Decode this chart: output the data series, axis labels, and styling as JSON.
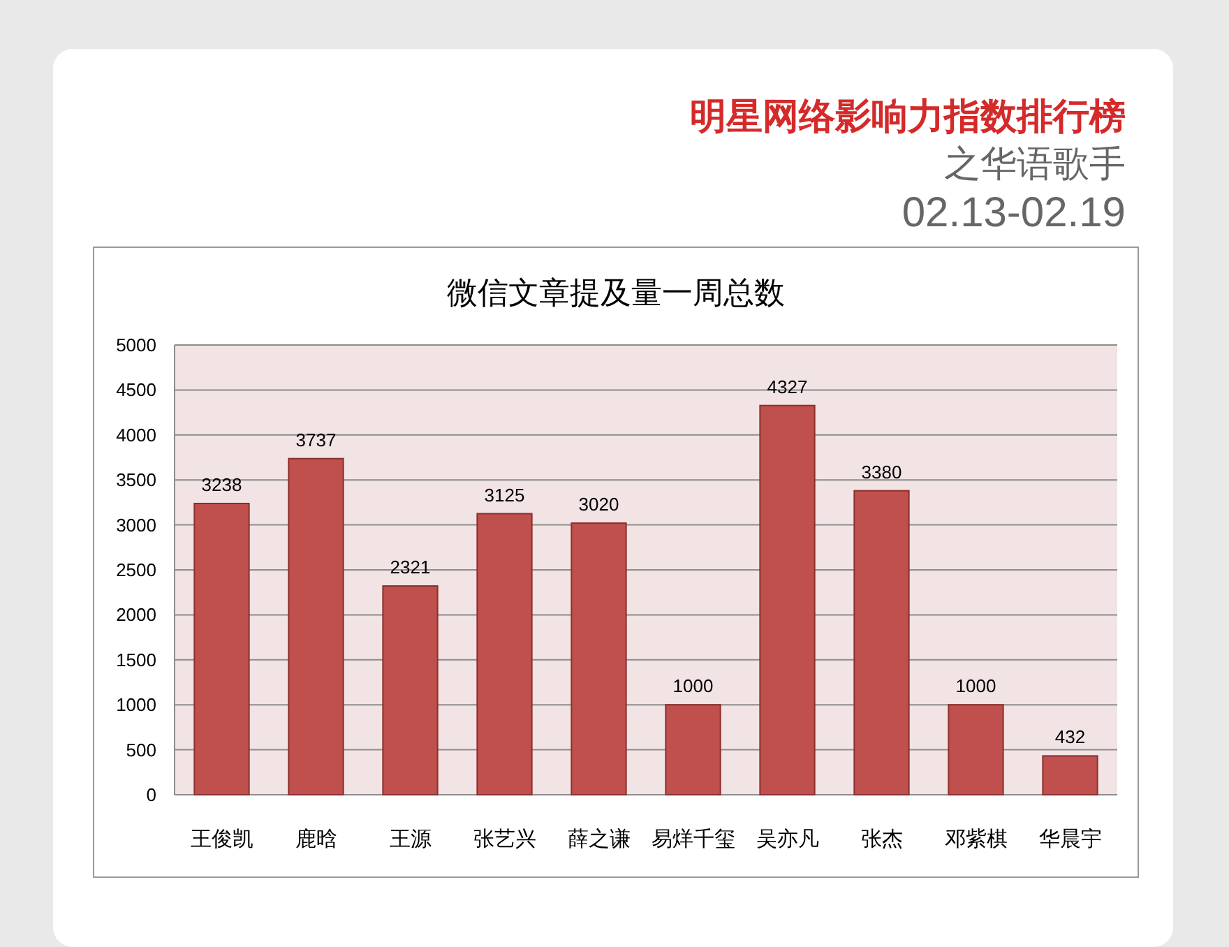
{
  "chart_data": {
    "type": "bar",
    "title": "微信文章提及量一周总数",
    "annotations": [
      "明星网络影响力指数排行榜",
      "之华语歌手",
      "02.13-02.19"
    ],
    "categories": [
      "王俊凯",
      "鹿晗",
      "王源",
      "张艺兴",
      "薛之谦",
      "易烊千玺",
      "吴亦凡",
      "张杰",
      "邓紫棋",
      "华晨宇"
    ],
    "values": [
      3238,
      3737,
      2321,
      3125,
      3020,
      1000,
      4327,
      3380,
      1000,
      432
    ],
    "color": "#c0504d",
    "ylim": [
      0,
      5000
    ],
    "yticks": [
      0,
      500,
      1000,
      1500,
      2000,
      2500,
      3000,
      3500,
      4000,
      4500,
      5000
    ],
    "grid": "y",
    "data_labels": true
  }
}
